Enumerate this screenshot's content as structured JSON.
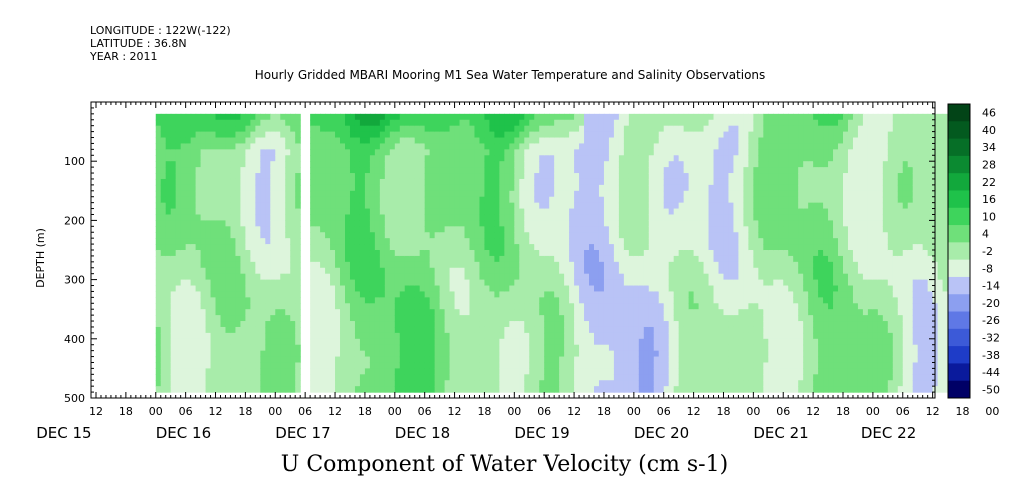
{
  "header": {
    "longitude": "LONGITUDE : 122W(-122)",
    "latitude": "LATITUDE : 36.8N",
    "year": "YEAR : 2011"
  },
  "chart_data": {
    "type": "heatmap",
    "title": "Hourly Gridded MBARI Mooring M1 Sea Water Temperature and Salinity Observations",
    "xlabel": "U Component of Water Velocity (cm s-1)",
    "ylabel": "DEPTH (m)",
    "ylim": [
      500,
      0
    ],
    "y_ticks": [
      100,
      200,
      300,
      400,
      500
    ],
    "hour_ticks": [
      "12",
      "18",
      "00",
      "06",
      "12",
      "18",
      "00",
      "06",
      "12",
      "18",
      "00",
      "06",
      "12",
      "18",
      "00",
      "06",
      "12",
      "18",
      "00",
      "06",
      "12",
      "18",
      "00",
      "06",
      "12",
      "18",
      "00",
      "06",
      "12",
      "18",
      "00",
      "06"
    ],
    "day_labels": [
      "DEC 15",
      "DEC 16",
      "DEC 17",
      "DEC 18",
      "DEC 19",
      "DEC 20",
      "DEC 21",
      "DEC 22"
    ],
    "colorbar_levels": [
      46,
      40,
      34,
      28,
      22,
      16,
      10,
      4,
      -2,
      -8,
      -14,
      -20,
      -26,
      -32,
      -38,
      -44,
      -50
    ],
    "colorbar_range": [
      -50,
      52
    ],
    "colorscale": [
      "#000066",
      "#0a1a9c",
      "#1e3cc8",
      "#3c5ad8",
      "#5f78e6",
      "#8c9ff0",
      "#b9c3f6",
      "#ddf5dc",
      "#a8ecaa",
      "#6fe07a",
      "#3ed45c",
      "#1fc24a",
      "#12a83c",
      "#0b8a31",
      "#066f27",
      "#035a1f",
      "#024417"
    ],
    "data_extent_time_hours": [
      24,
      186
    ],
    "data_extent_depth": [
      20,
      490
    ],
    "gap_time_hours": 53.5,
    "time_start": "DEC 15 00:00"
  }
}
